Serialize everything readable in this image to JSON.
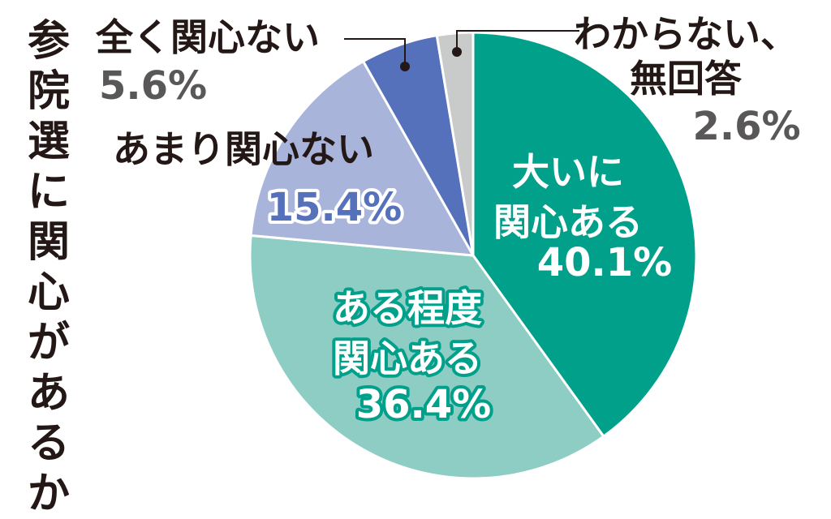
{
  "title": "参院選に関心があるか",
  "chart_data": {
    "type": "pie",
    "title": "参院選に関心があるか",
    "slices": [
      {
        "label_lines": [
          "大いに",
          "関心ある"
        ],
        "value": 40.1,
        "display": "40.1%",
        "color": "#00a08a"
      },
      {
        "label_lines": [
          "ある程度",
          "関心ある"
        ],
        "value": 36.4,
        "display": "36.4%",
        "color": "#8ecdc3"
      },
      {
        "label_lines": [
          "あまり関心ない"
        ],
        "value": 15.4,
        "display": "15.4%",
        "color": "#a9b4da"
      },
      {
        "label_lines": [
          "全く関心ない"
        ],
        "value": 5.6,
        "display": "5.6%",
        "color": "#5571bb"
      },
      {
        "label_lines": [
          "わからない、",
          "無回答"
        ],
        "value": 2.6,
        "display": "2.6%",
        "color": "#c9caca"
      }
    ]
  }
}
